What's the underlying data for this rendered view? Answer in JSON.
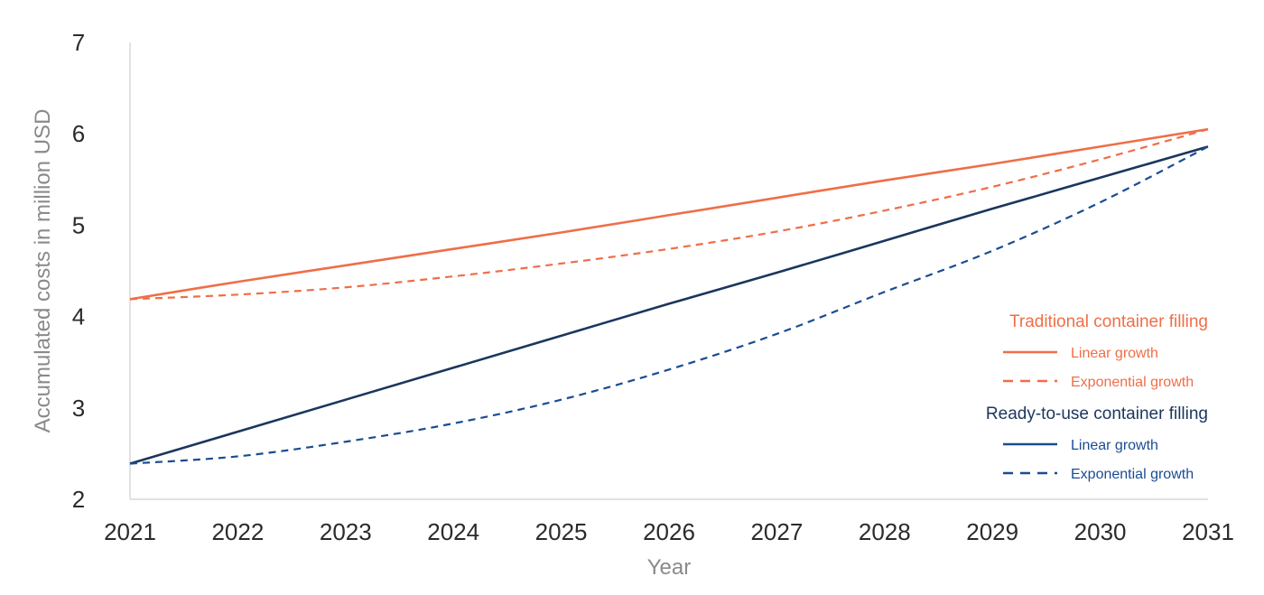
{
  "chart_data": {
    "type": "line",
    "title": "",
    "xlabel": "Year",
    "ylabel": "Accumulated costs in million USD",
    "xlim": [
      2021,
      2031
    ],
    "ylim": [
      2,
      7
    ],
    "x_ticks": [
      "2021",
      "2022",
      "2023",
      "2024",
      "2025",
      "2026",
      "2027",
      "2028",
      "2029",
      "2030",
      "2031"
    ],
    "y_ticks": [
      "2",
      "3",
      "4",
      "5",
      "6",
      "7"
    ],
    "grid": false,
    "legend_position": "right",
    "legend_groups": [
      {
        "title": "Traditional container filling",
        "color": "#ef6e48",
        "entries": [
          {
            "label": "Linear growth",
            "style": "solid",
            "color": "#ef6e48"
          },
          {
            "label": "Exponential growth",
            "style": "dashed",
            "color": "#ef6e48"
          }
        ]
      },
      {
        "title": "Ready-to-use container filling",
        "color": "#1b365d",
        "entries": [
          {
            "label": "Linear growth",
            "style": "solid",
            "color": "#1a4c93"
          },
          {
            "label": "Exponential growth",
            "style": "dashed",
            "color": "#1a4c93"
          }
        ]
      }
    ],
    "x": [
      2021,
      2022,
      2023,
      2024,
      2025,
      2026,
      2027,
      2028,
      2029,
      2030,
      2031
    ],
    "series": [
      {
        "group": "Traditional container filling",
        "style": "solid",
        "color": "#ef6e48",
        "values": [
          4.19,
          4.38,
          4.56,
          4.74,
          4.92,
          5.11,
          5.3,
          5.49,
          5.67,
          5.86,
          6.05
        ]
      },
      {
        "group": "Traditional container filling",
        "style": "dashed",
        "color": "#ef6e48",
        "values": [
          4.19,
          4.24,
          4.32,
          4.44,
          4.58,
          4.74,
          4.93,
          5.16,
          5.42,
          5.72,
          6.05
        ]
      },
      {
        "group": "Ready-to-use container filling",
        "style": "solid",
        "color": "#1b365d",
        "values": [
          2.39,
          2.74,
          3.09,
          3.44,
          3.79,
          4.14,
          4.48,
          4.83,
          5.18,
          5.52,
          5.86
        ]
      },
      {
        "group": "Ready-to-use container filling",
        "style": "dashed",
        "color": "#1a4c93",
        "values": [
          2.39,
          2.47,
          2.63,
          2.83,
          3.09,
          3.42,
          3.81,
          4.27,
          4.72,
          5.25,
          5.86
        ]
      }
    ]
  }
}
